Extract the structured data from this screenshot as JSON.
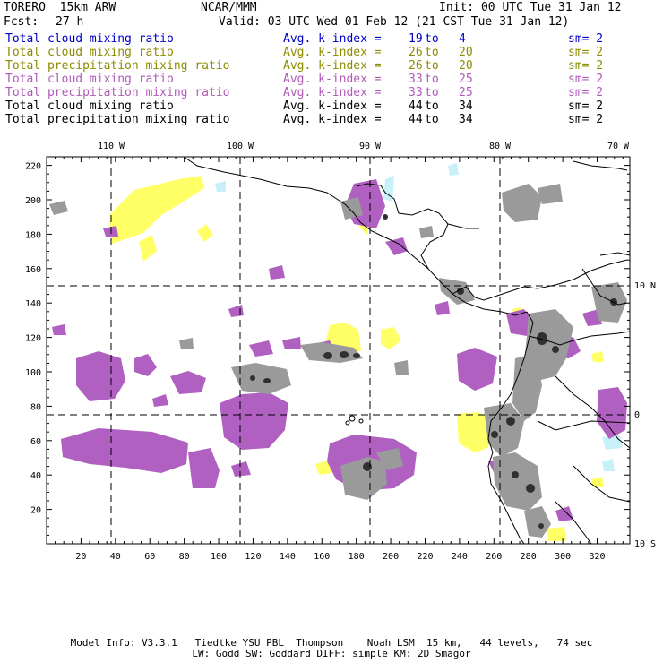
{
  "header": {
    "model": "TORERO  15km ARW",
    "center": "NCAR/MMM",
    "init": "Init: 00 UTC Tue 31 Jan 12",
    "fcst_label": "Fcst:",
    "fcst_value": "27 h",
    "valid": "Valid: 03 UTC Wed 01 Feb 12 (21 CST Tue 31 Jan 12)"
  },
  "legend": [
    {
      "name": "Total cloud mixing ratio",
      "kindex": "Avg. k-index =",
      "from": "19",
      "to_word": "to",
      "to": "4",
      "sm": "sm= 2",
      "color": "#0000cc"
    },
    {
      "name": "Total cloud mixing ratio",
      "kindex": "Avg. k-index =",
      "from": "26",
      "to_word": "to",
      "to": "20",
      "sm": "sm= 2",
      "color": "#8c8c00"
    },
    {
      "name": "Total precipitation mixing ratio",
      "kindex": "Avg. k-index =",
      "from": "26",
      "to_word": "to",
      "to": "20",
      "sm": "sm= 2",
      "color": "#8c8c00"
    },
    {
      "name": "Total cloud mixing ratio",
      "kindex": "Avg. k-index =",
      "from": "33",
      "to_word": "to",
      "to": "25",
      "sm": "sm= 2",
      "color": "#b05ab8"
    },
    {
      "name": "Total precipitation mixing ratio",
      "kindex": "Avg. k-index =",
      "from": "33",
      "to_word": "to",
      "to": "25",
      "sm": "sm= 2",
      "color": "#b05ab8"
    },
    {
      "name": "Total cloud mixing ratio",
      "kindex": "Avg. k-index =",
      "from": "44",
      "to_word": "to",
      "to": "34",
      "sm": "sm= 2",
      "color": "#000000"
    },
    {
      "name": "Total precipitation mixing ratio",
      "kindex": "Avg. k-index =",
      "from": "44",
      "to_word": "to",
      "to": "34",
      "sm": "sm= 2",
      "color": "#000000"
    }
  ],
  "map": {
    "top_labels": [
      "110 W",
      "100 W",
      "90 W",
      "80 W",
      "70 W"
    ],
    "right_labels": [
      "10 N",
      "0",
      "10 S"
    ],
    "y_ticks": [
      "220",
      "200",
      "180",
      "160",
      "140",
      "120",
      "100",
      "80",
      "60",
      "40",
      "20"
    ],
    "x_ticks": [
      "20",
      "40",
      "60",
      "80",
      "100",
      "120",
      "140",
      "160",
      "180",
      "200",
      "220",
      "240",
      "260",
      "280",
      "300",
      "320"
    ],
    "colors": {
      "yellow": "#ffff66",
      "purple": "#b060c0",
      "gray": "#9a9a9a",
      "dark": "#303030",
      "cyan": "#c8f0f8"
    }
  },
  "footer": {
    "line1": "Model Info: V3.3.1   Tiedtke YSU PBL  Thompson    Noah LSM  15 km,   44 levels,   74 sec",
    "line2": "LW: Godd SW: Goddard DIFF: simple KM: 2D Smagor"
  }
}
